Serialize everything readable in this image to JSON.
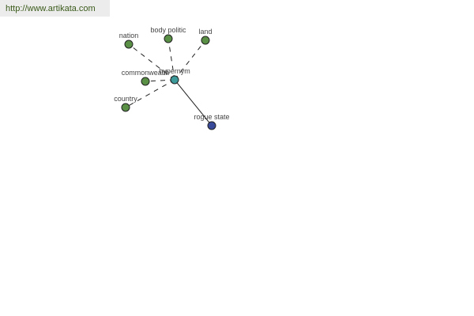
{
  "header": {
    "url": "http://www.artikata.com"
  },
  "colors": {
    "synonym_node": "#5a8f46",
    "center_node": "#3c9a9a",
    "hyponym_node": "#3a4a9a",
    "edge": "#222222"
  },
  "graph": {
    "center": {
      "label": "hypernym"
    },
    "nodes": [
      {
        "id": "nation",
        "label": "nation",
        "type": "synonym",
        "edge": "dashed"
      },
      {
        "id": "body-politic",
        "label": "body politic",
        "type": "synonym",
        "edge": "dashed"
      },
      {
        "id": "land",
        "label": "land",
        "type": "synonym",
        "edge": "dashed"
      },
      {
        "id": "commonwealth",
        "label": "commonwealth",
        "type": "synonym",
        "edge": "dashed"
      },
      {
        "id": "country",
        "label": "country",
        "type": "synonym",
        "edge": "dashed"
      },
      {
        "id": "rogue-state",
        "label": "rogue state",
        "type": "hyponym",
        "edge": "solid"
      }
    ]
  }
}
